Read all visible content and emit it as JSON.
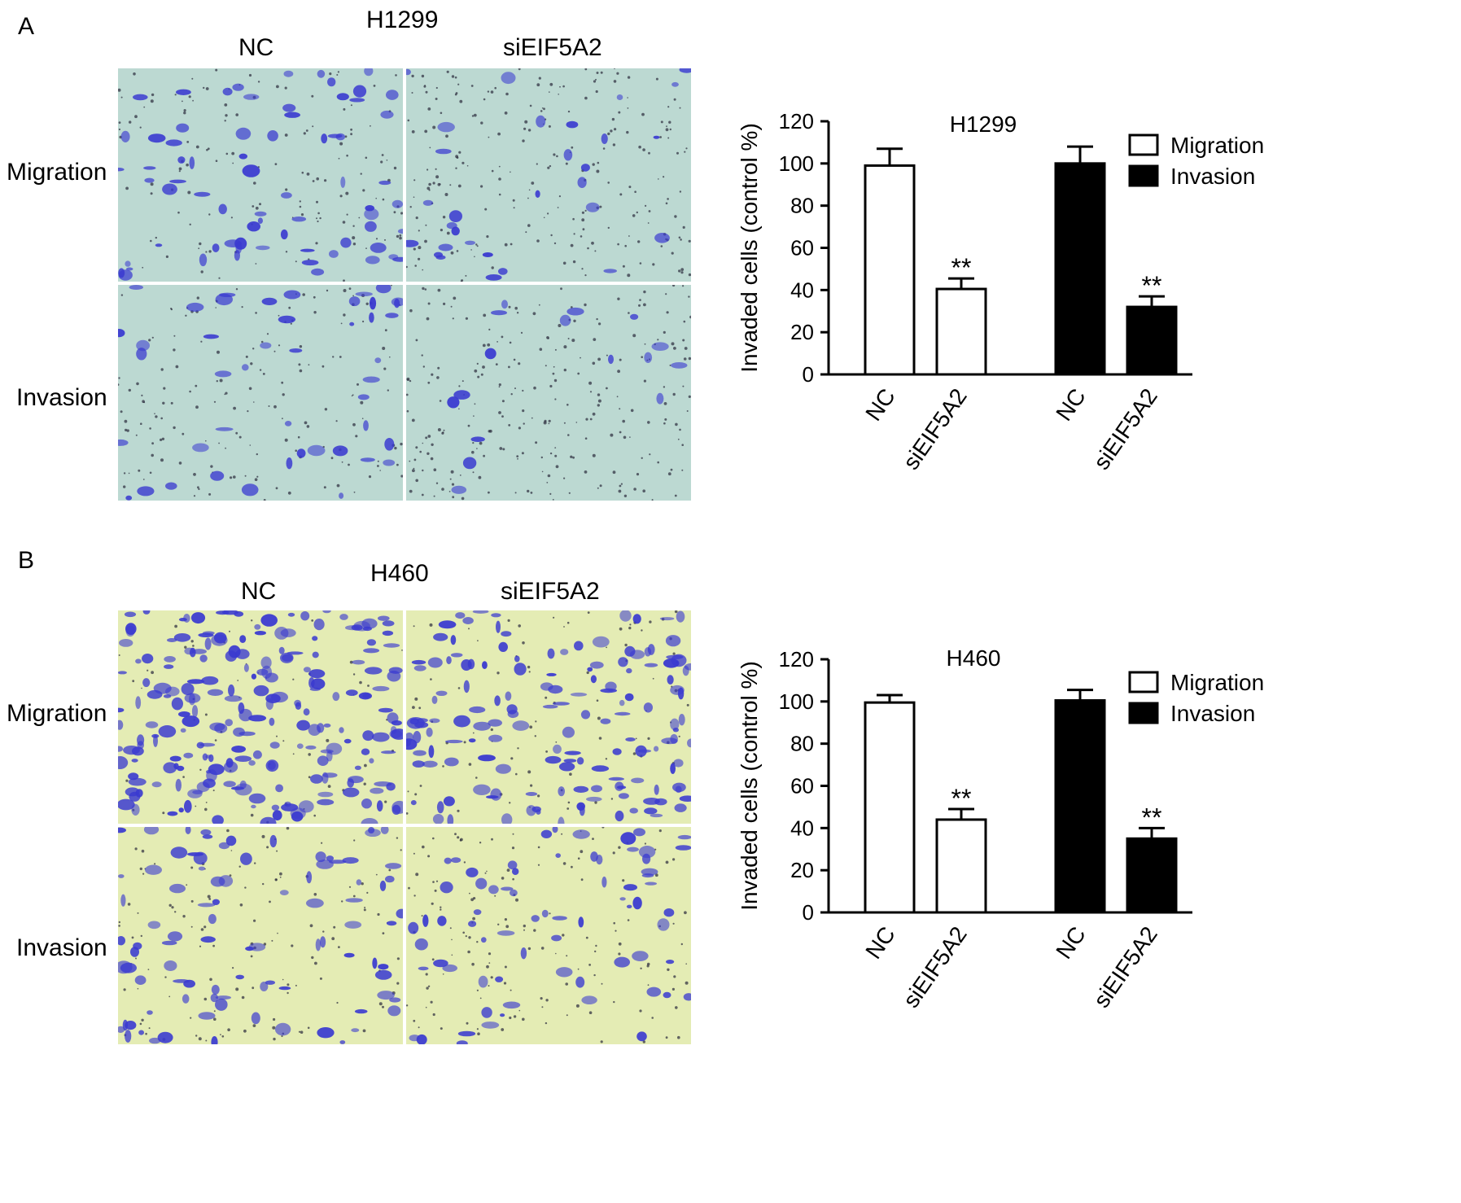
{
  "panels": [
    {
      "letter": "A",
      "cell_line": "H1299",
      "columns": [
        "NC",
        "siEIF5A2"
      ],
      "rows": [
        "Migration",
        "Invasion"
      ]
    },
    {
      "letter": "B",
      "cell_line": "H460",
      "columns": [
        "NC",
        "siEIF5A2"
      ],
      "rows": [
        "Migration",
        "Invasion"
      ]
    }
  ],
  "colors": {
    "panel_a_background": "#bcd9d2",
    "panel_b_background": "#e4ecb4",
    "stain": "#3a3ad0",
    "bar_migration_fill": "#ffffff",
    "bar_invasion_fill": "#000000"
  },
  "chart_data": [
    {
      "type": "bar",
      "title": "H1299",
      "ylabel": "Invaded cells (control %)",
      "ylim": [
        0,
        120
      ],
      "yticks": [
        0,
        20,
        40,
        60,
        80,
        100,
        120
      ],
      "categories": [
        "NC",
        "siEIF5A2",
        "NC",
        "siEIF5A2"
      ],
      "groups": [
        {
          "name": "Migration",
          "fill": "#ffffff",
          "values": [
            99,
            40.5
          ],
          "errors": [
            8,
            5
          ],
          "annotations": [
            "",
            "**"
          ]
        },
        {
          "name": "Invasion",
          "fill": "#000000",
          "values": [
            100,
            32
          ],
          "errors": [
            8,
            5
          ],
          "annotations": [
            "",
            "**"
          ]
        }
      ],
      "legend": [
        "Migration",
        "Invasion"
      ],
      "legend_position": "top-right",
      "grid": false
    },
    {
      "type": "bar",
      "title": "H460",
      "ylabel": "Invaded cells (control %)",
      "ylim": [
        0,
        120
      ],
      "yticks": [
        0,
        20,
        40,
        60,
        80,
        100,
        120
      ],
      "categories": [
        "NC",
        "siEIF5A2",
        "NC",
        "siEIF5A2"
      ],
      "groups": [
        {
          "name": "Migration",
          "fill": "#ffffff",
          "values": [
            99.5,
            44
          ],
          "errors": [
            3.5,
            5
          ],
          "annotations": [
            "",
            "**"
          ]
        },
        {
          "name": "Invasion",
          "fill": "#000000",
          "values": [
            100.5,
            35
          ],
          "errors": [
            5,
            5
          ],
          "annotations": [
            "",
            "**"
          ]
        }
      ],
      "legend": [
        "Migration",
        "Invasion"
      ],
      "legend_position": "top-right",
      "grid": false
    }
  ]
}
